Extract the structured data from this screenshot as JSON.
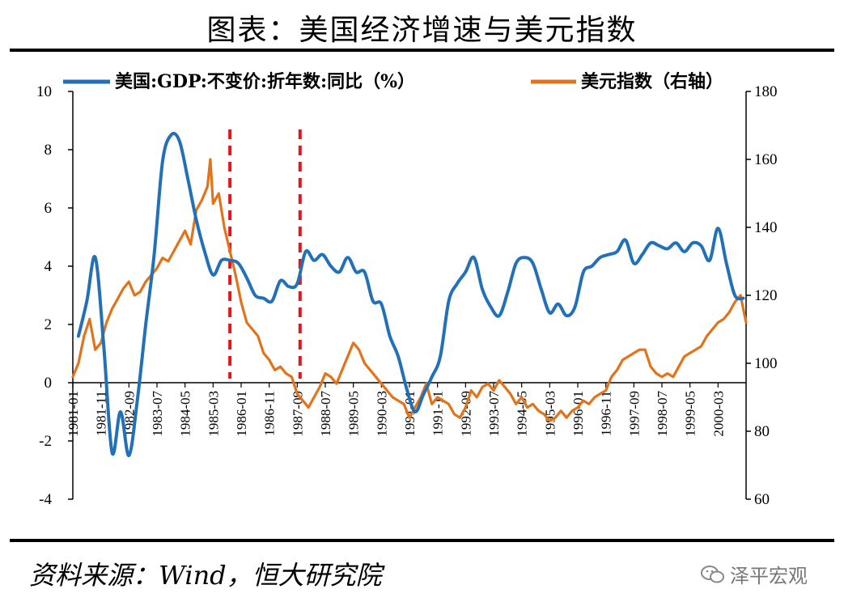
{
  "title": "图表：美国经济增速与美元指数",
  "source": "资料来源：Wind，恒大研究院",
  "watermark": {
    "text": "泽平宏观",
    "icon": "wechat-icon"
  },
  "chart_data": {
    "type": "line",
    "legend": [
      {
        "label": "美国:GDP:不变价:折年数:同比（%）",
        "color": "#2271b8"
      },
      {
        "label": "美元指数（右轴）",
        "color": "#e3731b"
      }
    ],
    "y_left": {
      "ylim": [
        -4,
        10
      ],
      "ticks": [
        -4,
        -2,
        0,
        2,
        4,
        6,
        8,
        10
      ]
    },
    "y_right": {
      "ylim": [
        60,
        180
      ],
      "ticks": [
        60,
        80,
        100,
        120,
        140,
        160,
        180
      ]
    },
    "x_range": [
      "1981-01",
      "2001-01"
    ],
    "x_ticks": [
      "1981-01",
      "1981-11",
      "1982-09",
      "1983-07",
      "1984-05",
      "1985-03",
      "1986-01",
      "1986-11",
      "1987-09",
      "1988-07",
      "1989-05",
      "1990-03",
      "1991-01",
      "1991-11",
      "1992-09",
      "1993-07",
      "1994-05",
      "1995-03",
      "1996-01",
      "1996-11",
      "1997-09",
      "1998-07",
      "1999-05",
      "2000-03"
    ],
    "reference_lines": [
      "1985-09",
      "1987-10"
    ],
    "reference_color": "#e8141b",
    "series": [
      {
        "name": "美国:GDP:不变价:折年数:同比（%）",
        "axis": "left",
        "color": "#2271b8",
        "x": [
          "1981-03",
          "1981-06",
          "1981-09",
          "1981-12",
          "1982-03",
          "1982-06",
          "1982-09",
          "1982-12",
          "1983-03",
          "1983-06",
          "1983-09",
          "1983-12",
          "1984-03",
          "1984-06",
          "1984-09",
          "1984-12",
          "1985-03",
          "1985-06",
          "1985-09",
          "1985-12",
          "1986-03",
          "1986-06",
          "1986-09",
          "1986-12",
          "1987-03",
          "1987-06",
          "1987-09",
          "1987-12",
          "1988-03",
          "1988-06",
          "1988-09",
          "1988-12",
          "1989-03",
          "1989-06",
          "1989-09",
          "1989-12",
          "1990-03",
          "1990-06",
          "1990-09",
          "1990-12",
          "1991-03",
          "1991-06",
          "1991-09",
          "1991-12",
          "1992-03",
          "1992-06",
          "1992-09",
          "1992-12",
          "1993-03",
          "1993-06",
          "1993-09",
          "1993-12",
          "1994-03",
          "1994-06",
          "1994-09",
          "1994-12",
          "1995-03",
          "1995-06",
          "1995-09",
          "1995-12",
          "1996-03",
          "1996-06",
          "1996-09",
          "1996-12",
          "1997-03",
          "1997-06",
          "1997-09",
          "1997-12",
          "1998-03",
          "1998-06",
          "1998-09",
          "1998-12",
          "1999-03",
          "1999-06",
          "1999-09",
          "1999-12",
          "2000-03",
          "2000-06",
          "2000-09",
          "2000-12"
        ],
        "values": [
          1.6,
          2.8,
          4.3,
          1.3,
          -2.4,
          -1.0,
          -2.5,
          -0.6,
          2.0,
          4.4,
          7.6,
          8.5,
          8.3,
          7.0,
          5.6,
          4.5,
          3.7,
          4.2,
          4.2,
          4.1,
          3.6,
          3.0,
          2.9,
          2.8,
          3.5,
          3.3,
          3.4,
          4.5,
          4.2,
          4.4,
          4.0,
          3.8,
          4.3,
          3.8,
          3.8,
          2.8,
          2.7,
          1.6,
          0.9,
          -0.2,
          -1.0,
          -0.4,
          0.2,
          0.9,
          2.8,
          3.4,
          3.8,
          4.3,
          3.2,
          2.6,
          2.3,
          3.1,
          4.1,
          4.3,
          4.1,
          3.2,
          2.4,
          2.7,
          2.3,
          2.6,
          3.8,
          4.0,
          4.3,
          4.4,
          4.5,
          4.9,
          4.1,
          4.4,
          4.8,
          4.7,
          4.6,
          4.8,
          4.5,
          4.8,
          4.7,
          4.2,
          5.3,
          4.1,
          3.0,
          2.9
        ]
      },
      {
        "name": "美元指数（右轴）",
        "axis": "right",
        "color": "#e3731b",
        "x": [
          "1981-01",
          "1981-03",
          "1981-05",
          "1981-07",
          "1981-09",
          "1981-11",
          "1982-01",
          "1982-03",
          "1982-05",
          "1982-07",
          "1982-09",
          "1982-11",
          "1983-01",
          "1983-03",
          "1983-05",
          "1983-07",
          "1983-09",
          "1983-11",
          "1984-01",
          "1984-03",
          "1984-05",
          "1984-07",
          "1984-09",
          "1984-11",
          "1985-01",
          "1985-02",
          "1985-03",
          "1985-05",
          "1985-07",
          "1985-09",
          "1985-11",
          "1986-01",
          "1986-03",
          "1986-05",
          "1986-07",
          "1986-09",
          "1986-11",
          "1987-01",
          "1987-03",
          "1987-05",
          "1987-07",
          "1987-09",
          "1987-11",
          "1988-01",
          "1988-03",
          "1988-05",
          "1988-07",
          "1988-09",
          "1988-11",
          "1989-01",
          "1989-03",
          "1989-05",
          "1989-07",
          "1989-09",
          "1989-11",
          "1990-01",
          "1990-03",
          "1990-05",
          "1990-07",
          "1990-09",
          "1990-11",
          "1991-01",
          "1991-03",
          "1991-05",
          "1991-07",
          "1991-09",
          "1991-11",
          "1992-01",
          "1992-03",
          "1992-05",
          "1992-07",
          "1992-09",
          "1992-11",
          "1993-01",
          "1993-03",
          "1993-05",
          "1993-07",
          "1993-09",
          "1993-11",
          "1994-01",
          "1994-03",
          "1994-05",
          "1994-07",
          "1994-09",
          "1994-11",
          "1995-01",
          "1995-03",
          "1995-05",
          "1995-07",
          "1995-09",
          "1995-11",
          "1996-01",
          "1996-03",
          "1996-05",
          "1996-07",
          "1996-09",
          "1996-11",
          "1997-01",
          "1997-03",
          "1997-05",
          "1997-07",
          "1997-09",
          "1997-11",
          "1998-01",
          "1998-03",
          "1998-05",
          "1998-07",
          "1998-09",
          "1998-11",
          "1999-01",
          "1999-03",
          "1999-05",
          "1999-07",
          "1999-09",
          "1999-11",
          "2000-01",
          "2000-03",
          "2000-05",
          "2000-07",
          "2000-09",
          "2000-11",
          "2001-01"
        ],
        "values": [
          96,
          100,
          108,
          113,
          104,
          106,
          112,
          116,
          119,
          122,
          124,
          120,
          121,
          124,
          126,
          128,
          131,
          130,
          133,
          136,
          139,
          135,
          145,
          148,
          152,
          160,
          147,
          150,
          140,
          133,
          126,
          118,
          112,
          110,
          108,
          103,
          101,
          98,
          99,
          97,
          96,
          91,
          89,
          87,
          90,
          93,
          97,
          96,
          94,
          98,
          102,
          106,
          104,
          100,
          98,
          96,
          94,
          92,
          90,
          89,
          88,
          84,
          87,
          90,
          94,
          88,
          90,
          89,
          88,
          85,
          84,
          87,
          92,
          90,
          93,
          94,
          92,
          95,
          93,
          91,
          88,
          90,
          87,
          88,
          86,
          85,
          83,
          84,
          86,
          84,
          86,
          87,
          89,
          88,
          90,
          91,
          92,
          96,
          98,
          101,
          102,
          103,
          104,
          104,
          99,
          97,
          96,
          97,
          96,
          99,
          102,
          103,
          104,
          105,
          108,
          110,
          112,
          113,
          115,
          118,
          120,
          112
        ]
      }
    ]
  }
}
